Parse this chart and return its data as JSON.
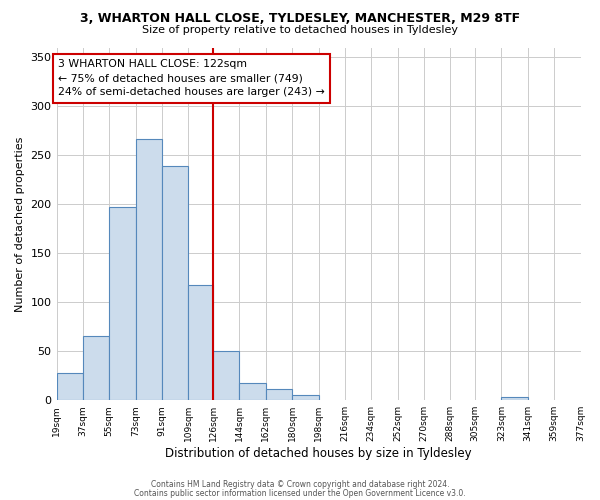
{
  "title": "3, WHARTON HALL CLOSE, TYLDESLEY, MANCHESTER, M29 8TF",
  "subtitle": "Size of property relative to detached houses in Tyldesley",
  "xlabel": "Distribution of detached houses by size in Tyldesley",
  "ylabel": "Number of detached properties",
  "bar_color": "#ccdcec",
  "bar_edge_color": "#5588bb",
  "vline_x": 126,
  "vline_color": "#cc0000",
  "bin_edges": [
    19,
    37,
    55,
    73,
    91,
    109,
    126,
    144,
    162,
    180,
    198,
    216,
    234,
    252,
    270,
    288,
    305,
    323,
    341,
    359,
    377
  ],
  "bar_heights": [
    28,
    66,
    197,
    267,
    239,
    118,
    50,
    18,
    11,
    5,
    0,
    0,
    0,
    0,
    0,
    0,
    0,
    3,
    0,
    0
  ],
  "yticks": [
    0,
    50,
    100,
    150,
    200,
    250,
    300,
    350
  ],
  "ylim": [
    0,
    360
  ],
  "annotation_title": "3 WHARTON HALL CLOSE: 122sqm",
  "annotation_line1": "← 75% of detached houses are smaller (749)",
  "annotation_line2": "24% of semi-detached houses are larger (243) →",
  "footnote1": "Contains HM Land Registry data © Crown copyright and database right 2024.",
  "footnote2": "Contains public sector information licensed under the Open Government Licence v3.0.",
  "background_color": "#ffffff",
  "grid_color": "#cccccc"
}
